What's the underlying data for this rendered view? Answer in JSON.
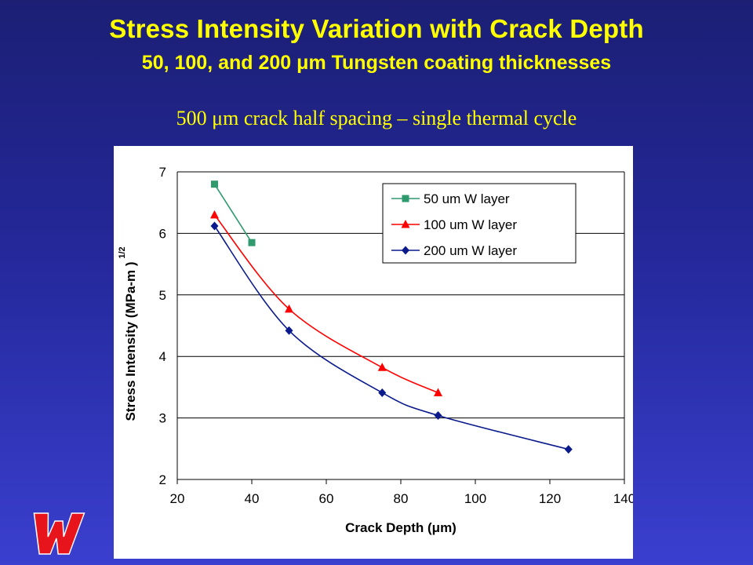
{
  "slide": {
    "title": "Stress Intensity Variation with Crack Depth",
    "subtitle": "50, 100, and 200 μm Tungsten coating thicknesses",
    "caption": "500 μm crack half spacing – single thermal cycle"
  },
  "logo": {
    "icon": "w-logo-icon",
    "color": "#e8141c"
  },
  "chart_data": {
    "type": "line",
    "xlabel": "Crack Depth (μm)",
    "ylabel_main": "Stress Intensity (MPa-m",
    "ylabel_exp": "1/2",
    "ylabel_close": ")",
    "xlim": [
      20,
      140
    ],
    "ylim": [
      2,
      7
    ],
    "x_ticks": [
      "20",
      "40",
      "60",
      "80",
      "100",
      "120",
      "140"
    ],
    "y_ticks": [
      "2",
      "3",
      "4",
      "5",
      "6",
      "7"
    ],
    "grid": "horizontal",
    "legend_position": "top-right",
    "series": [
      {
        "name": "50 um W layer",
        "color": "#2e9a6e",
        "marker": "square",
        "x": [
          30,
          40
        ],
        "y": [
          6.8,
          5.85
        ]
      },
      {
        "name": "100 um W layer",
        "color": "#ff0000",
        "marker": "triangle",
        "x": [
          30,
          50,
          75,
          90
        ],
        "y": [
          6.3,
          4.77,
          3.82,
          3.41
        ]
      },
      {
        "name": "200 um W layer",
        "color": "#0a1a8c",
        "marker": "diamond",
        "x": [
          30,
          50,
          75,
          90,
          125
        ],
        "y": [
          6.12,
          4.42,
          3.41,
          3.04,
          2.49
        ]
      }
    ]
  }
}
